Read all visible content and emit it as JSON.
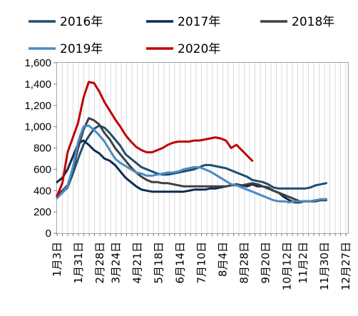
{
  "chart_data": {
    "type": "line",
    "title": "",
    "xlabel": "",
    "ylabel": "",
    "ylim": [
      0,
      1600
    ],
    "yticks": [
      0,
      200,
      400,
      600,
      800,
      1000,
      1200,
      1400,
      1600
    ],
    "ytick_labels": [
      "0",
      "200",
      "400",
      "600",
      "800",
      "1,000",
      "1,200",
      "1,400",
      "1,600"
    ],
    "grid": "vertical",
    "legend_position": "top",
    "x_week_count": 52,
    "xtick_labels": [
      "1月3日",
      "1月31日",
      "2月28日",
      "3月24日",
      "4月21日",
      "5月18日",
      "6月14日",
      "7月10日",
      "8月4日",
      "8月28日",
      "9月20日",
      "10月12日",
      "11月2日",
      "11月30日",
      "12月27日"
    ],
    "xtick_weeks": [
      0,
      4,
      8,
      11,
      15,
      19,
      23,
      27,
      31,
      35,
      39,
      43,
      46,
      50,
      54
    ],
    "series": [
      {
        "name": "2016年",
        "color": "#1f4e6e",
        "values": [
          340,
          380,
          430,
          560,
          700,
          830,
          910,
          980,
          1010,
          990,
          940,
          880,
          820,
          740,
          700,
          660,
          620,
          600,
          580,
          560,
          550,
          550,
          560,
          570,
          580,
          590,
          600,
          620,
          640,
          640,
          630,
          620,
          610,
          590,
          570,
          550,
          530,
          500,
          490,
          480,
          460,
          430,
          420,
          420,
          420,
          420,
          420,
          420,
          430,
          450,
          460,
          470
        ]
      },
      {
        "name": "2017年",
        "color": "#0d2b52",
        "values": [
          480,
          520,
          600,
          720,
          840,
          870,
          830,
          780,
          750,
          700,
          680,
          640,
          580,
          520,
          480,
          440,
          410,
          400,
          390,
          390,
          390,
          390,
          390,
          390,
          390,
          400,
          410,
          410,
          410,
          420,
          420,
          430,
          440,
          450,
          460,
          450,
          440,
          460,
          440,
          440,
          430,
          400,
          380,
          340,
          310,
          290,
          290,
          300,
          300,
          310,
          310,
          320
        ]
      },
      {
        "name": "2018年",
        "color": "#404040",
        "values": [
          360,
          400,
          450,
          600,
          800,
          970,
          1080,
          1060,
          1020,
          940,
          880,
          800,
          740,
          680,
          620,
          570,
          530,
          500,
          480,
          480,
          470,
          470,
          460,
          450,
          440,
          440,
          440,
          440,
          440,
          440,
          440,
          440,
          440,
          450,
          450,
          450,
          460,
          470,
          460,
          440,
          420,
          400,
          380,
          360,
          340,
          320,
          300,
          300,
          300,
          300,
          310,
          310
        ]
      },
      {
        "name": "2019年",
        "color": "#4a8cc4",
        "values": [
          330,
          380,
          440,
          620,
          860,
          1000,
          1010,
          970,
          920,
          860,
          780,
          700,
          660,
          630,
          600,
          570,
          560,
          540,
          540,
          550,
          560,
          570,
          570,
          580,
          600,
          610,
          620,
          620,
          600,
          580,
          550,
          520,
          490,
          460,
          450,
          430,
          410,
          390,
          370,
          350,
          330,
          310,
          300,
          300,
          290,
          300,
          300,
          300,
          300,
          310,
          320,
          320
        ]
      },
      {
        "name": "2020年",
        "color": "#c00000",
        "values": [
          350,
          470,
          760,
          900,
          1040,
          1270,
          1420,
          1410,
          1330,
          1230,
          1150,
          1070,
          1000,
          920,
          860,
          810,
          780,
          760,
          760,
          780,
          800,
          830,
          850,
          860,
          860,
          860,
          870,
          870,
          880,
          890,
          900,
          890,
          870,
          800,
          830,
          780,
          730,
          680
        ]
      }
    ]
  }
}
